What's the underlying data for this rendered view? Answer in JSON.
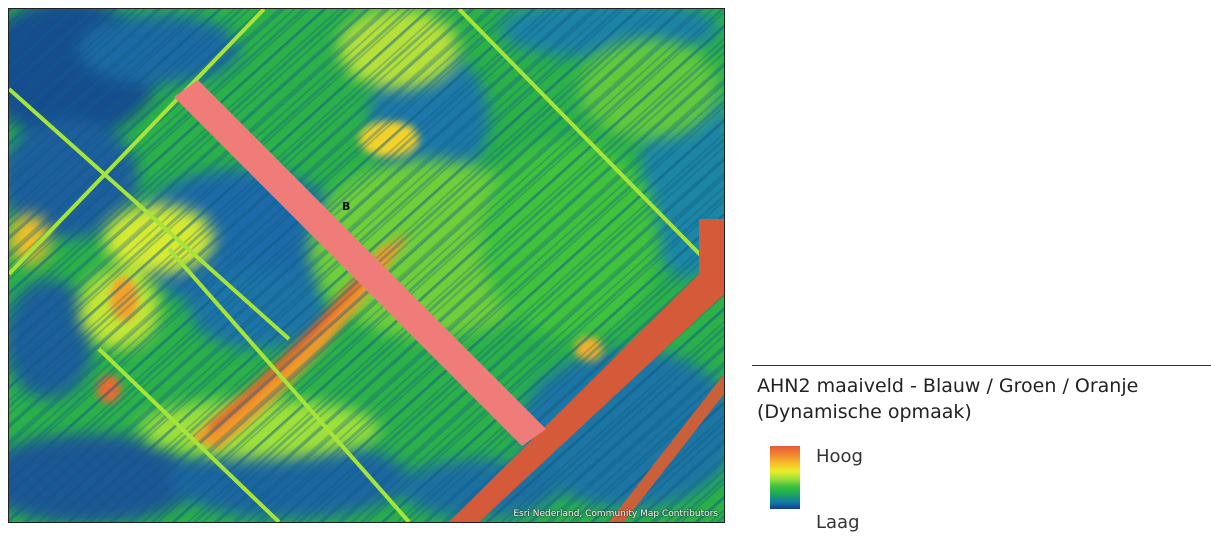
{
  "map": {
    "transect_label": "B",
    "attribution": "Esri Nederland, Community Map Contributors",
    "transect_color": "#f07c7a",
    "elevation_colors": {
      "high": "#e45a3c",
      "upper": "#f6c028",
      "middle": "#3fc23d",
      "lower": "#1477a6",
      "low": "#133e8a"
    }
  },
  "legend": {
    "title_line1": "AHN2 maaiveld - Blauw / Groen / Oranje",
    "title_line2": "(Dynamische opmaak)",
    "high_label": "Hoog",
    "low_label": "Laag"
  }
}
